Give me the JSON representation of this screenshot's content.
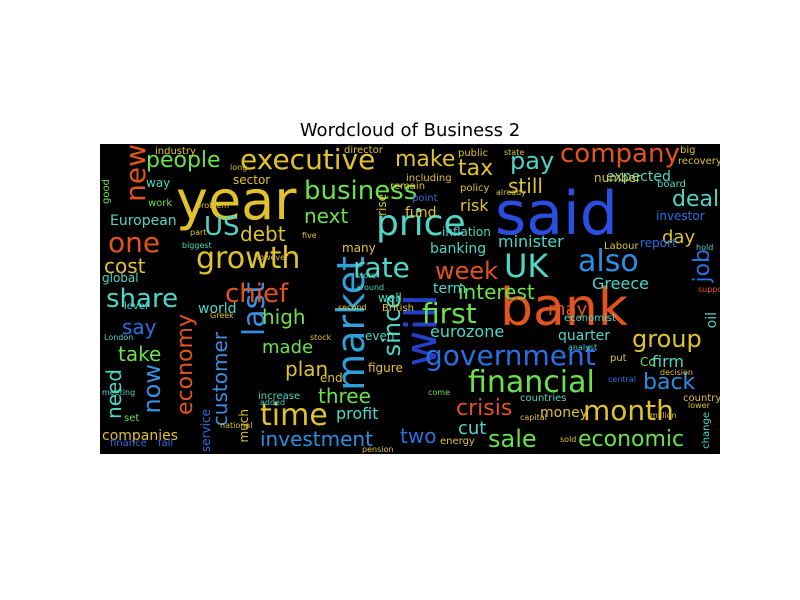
{
  "title": "Wordcloud of Business 2",
  "words": [
    {
      "text": "said",
      "color": "#2a4fe0"
    },
    {
      "text": "bank",
      "color": "#e2541c"
    },
    {
      "text": "year",
      "color": "#e0c22e"
    },
    {
      "text": "will",
      "color": "#2440c8"
    },
    {
      "text": "market",
      "color": "#2fa0d8"
    },
    {
      "text": "price",
      "color": "#4ed6c8"
    },
    {
      "text": "financial",
      "color": "#6be14a"
    },
    {
      "text": "government",
      "color": "#2a6fe0"
    },
    {
      "text": "UK",
      "color": "#4ed6c8"
    },
    {
      "text": "executive",
      "color": "#e0c22e"
    },
    {
      "text": "growth",
      "color": "#e0c22e"
    },
    {
      "text": "business",
      "color": "#6be14a"
    },
    {
      "text": "rate",
      "color": "#4ed6c8"
    },
    {
      "text": "last",
      "color": "#3a8ee0"
    },
    {
      "text": "time",
      "color": "#e0c22e"
    },
    {
      "text": "month",
      "color": "#e0c22e"
    },
    {
      "text": "also",
      "color": "#2a8fe0"
    },
    {
      "text": "company",
      "color": "#e2541c"
    },
    {
      "text": "people",
      "color": "#6be14a"
    },
    {
      "text": "chief",
      "color": "#e2541c"
    },
    {
      "text": "US",
      "color": "#4ed6c8"
    },
    {
      "text": "one",
      "color": "#e2541c"
    },
    {
      "text": "new",
      "color": "#e2541c"
    },
    {
      "text": "share",
      "color": "#4ed6c8"
    },
    {
      "text": "first",
      "color": "#6be14a"
    },
    {
      "text": "since",
      "color": "#4ed6c8"
    },
    {
      "text": "customer",
      "color": "#3a8ee0"
    },
    {
      "text": "economy",
      "color": "#e2541c"
    },
    {
      "text": "now",
      "color": "#3a8ee0"
    },
    {
      "text": "pay",
      "color": "#4ed6c8"
    },
    {
      "text": "tax",
      "color": "#e0c22e"
    },
    {
      "text": "deal",
      "color": "#4ed6c8"
    },
    {
      "text": "week",
      "color": "#e2541c"
    },
    {
      "text": "interest",
      "color": "#6be14a"
    },
    {
      "text": "group",
      "color": "#e0c22e"
    },
    {
      "text": "back",
      "color": "#2a8fe0"
    },
    {
      "text": "crisis",
      "color": "#e2541c"
    },
    {
      "text": "sale",
      "color": "#6be14a"
    },
    {
      "text": "economic",
      "color": "#6be14a"
    },
    {
      "text": "investment",
      "color": "#2a8fe0"
    },
    {
      "text": "two",
      "color": "#2a6fe0"
    },
    {
      "text": "cut",
      "color": "#4ed6c8"
    },
    {
      "text": "three",
      "color": "#6be14a"
    },
    {
      "text": "plan",
      "color": "#e0c22e"
    },
    {
      "text": "made",
      "color": "#6be14a"
    },
    {
      "text": "high",
      "color": "#6be14a"
    },
    {
      "text": "next",
      "color": "#6be14a"
    },
    {
      "text": "debt",
      "color": "#e0c22e"
    },
    {
      "text": "cost",
      "color": "#e0c22e"
    },
    {
      "text": "say",
      "color": "#2a6fe0"
    },
    {
      "text": "take",
      "color": "#6be14a"
    },
    {
      "text": "need",
      "color": "#4ed6c8"
    },
    {
      "text": "make",
      "color": "#e0c22e"
    },
    {
      "text": "still",
      "color": "#e0c22e"
    },
    {
      "text": "expected",
      "color": "#4ed6c8"
    },
    {
      "text": "job",
      "color": "#2a6fe0"
    },
    {
      "text": "day",
      "color": "#e0c22e"
    },
    {
      "text": "Greece",
      "color": "#4ed6c8"
    },
    {
      "text": "may",
      "color": "#e2541c"
    },
    {
      "text": "eurozone",
      "color": "#4ed6c8"
    },
    {
      "text": "minister",
      "color": "#4ed6c8"
    },
    {
      "text": "profit",
      "color": "#4ed6c8"
    },
    {
      "text": "companies",
      "color": "#e0c22e"
    },
    {
      "text": "service",
      "color": "#2a6fe0"
    },
    {
      "text": "European",
      "color": "#4ed6c8"
    },
    {
      "text": "risk",
      "color": "#e0c22e"
    },
    {
      "text": "fund",
      "color": "#e0c22e"
    },
    {
      "text": "rise",
      "color": "#e0c22e"
    },
    {
      "text": "term",
      "color": "#4ed6c8"
    },
    {
      "text": "banking",
      "color": "#4ed6c8"
    },
    {
      "text": "quarter",
      "color": "#4ed6c8"
    },
    {
      "text": "money",
      "color": "#e0c22e"
    },
    {
      "text": "firm",
      "color": "#4ed6c8"
    },
    {
      "text": "oil",
      "color": "#4ed6c8"
    },
    {
      "text": "number",
      "color": "#e0c22e"
    },
    {
      "text": "sector",
      "color": "#e0c22e"
    },
    {
      "text": "world",
      "color": "#4ed6c8"
    },
    {
      "text": "global",
      "color": "#4ed6c8"
    },
    {
      "text": "way",
      "color": "#4ed6c8"
    },
    {
      "text": "report",
      "color": "#2a6fe0"
    },
    {
      "text": "investor",
      "color": "#2a6fe0"
    },
    {
      "text": "inflation",
      "color": "#4ed6c8"
    },
    {
      "text": "many",
      "color": "#e0c22e"
    },
    {
      "text": "even",
      "color": "#4ed6c8"
    },
    {
      "text": "well",
      "color": "#4ed6c8"
    },
    {
      "text": "end",
      "color": "#e0c22e"
    },
    {
      "text": "figure",
      "color": "#e0c22e"
    },
    {
      "text": "much",
      "color": "#e0c22e"
    },
    {
      "text": "increase",
      "color": "#4ed6c8"
    },
    {
      "text": "Co",
      "color": "#6be14a"
    },
    {
      "text": "energy",
      "color": "#e0c22e"
    },
    {
      "text": "industry",
      "color": "#e0c22e"
    },
    {
      "text": "director",
      "color": "#e0c22e"
    },
    {
      "text": "public",
      "color": "#e0c22e"
    },
    {
      "text": "policy",
      "color": "#e0c22e"
    },
    {
      "text": "level",
      "color": "#4ed6c8"
    },
    {
      "text": "Labour",
      "color": "#e0c22e"
    },
    {
      "text": "London",
      "color": "#4ed6c8"
    },
    {
      "text": "British",
      "color": "#e0c22e"
    },
    {
      "text": "second",
      "color": "#e0c22e"
    },
    {
      "text": "country",
      "color": "#e0c22e"
    },
    {
      "text": "big",
      "color": "#e0c22e"
    },
    {
      "text": "recovery",
      "color": "#e0c22e"
    },
    {
      "text": "board",
      "color": "#4ed6c8"
    },
    {
      "text": "change",
      "color": "#4ed6c8"
    },
    {
      "text": "good",
      "color": "#6be14a"
    },
    {
      "text": "work",
      "color": "#6be14a"
    },
    {
      "text": "finance",
      "color": "#2a6fe0"
    },
    {
      "text": "fall",
      "color": "#2a6fe0"
    },
    {
      "text": "set",
      "color": "#6be14a"
    },
    {
      "text": "including",
      "color": "#e0c22e"
    },
    {
      "text": "point",
      "color": "#2a6fe0"
    },
    {
      "text": "remain",
      "color": "#e0c22e"
    },
    {
      "text": "already",
      "color": "#e0c22e"
    },
    {
      "text": "state",
      "color": "#e0c22e"
    },
    {
      "text": "stock",
      "color": "#e0c22e"
    },
    {
      "text": "decision",
      "color": "#e0c22e"
    },
    {
      "text": "around",
      "color": "#4ed6c8"
    },
    {
      "text": "countries",
      "color": "#4ed6c8"
    },
    {
      "text": "economist",
      "color": "#4ed6c8"
    },
    {
      "text": "analyst",
      "color": "#4ed6c8"
    },
    {
      "text": "long",
      "color": "#e0c22e"
    },
    {
      "text": "part",
      "color": "#e0c22e"
    },
    {
      "text": "central",
      "color": "#2a6fe0"
    },
    {
      "text": "come",
      "color": "#6be14a"
    },
    {
      "text": "store",
      "color": "#4ed6c8"
    },
    {
      "text": "put",
      "color": "#e0c22e"
    },
    {
      "text": "however",
      "color": "#e0c22e"
    },
    {
      "text": "biggest",
      "color": "#4ed6c8"
    },
    {
      "text": "added",
      "color": "#4ed6c8"
    },
    {
      "text": "five",
      "color": "#e0c22e"
    },
    {
      "text": "million",
      "color": "#e0c22e"
    },
    {
      "text": "sold",
      "color": "#e0c22e"
    },
    {
      "text": "hold",
      "color": "#4ed6c8"
    },
    {
      "text": "support",
      "color": "#e2541c"
    },
    {
      "text": "lower",
      "color": "#e0c22e"
    },
    {
      "text": "Greek",
      "color": "#e0c22e"
    },
    {
      "text": "meeting",
      "color": "#4ed6c8"
    },
    {
      "text": "national",
      "color": "#e0c22e"
    },
    {
      "text": "problem",
      "color": "#e0c22e"
    },
    {
      "text": "pension",
      "color": "#e0c22e"
    },
    {
      "text": "capital",
      "color": "#e0c22e"
    }
  ]
}
